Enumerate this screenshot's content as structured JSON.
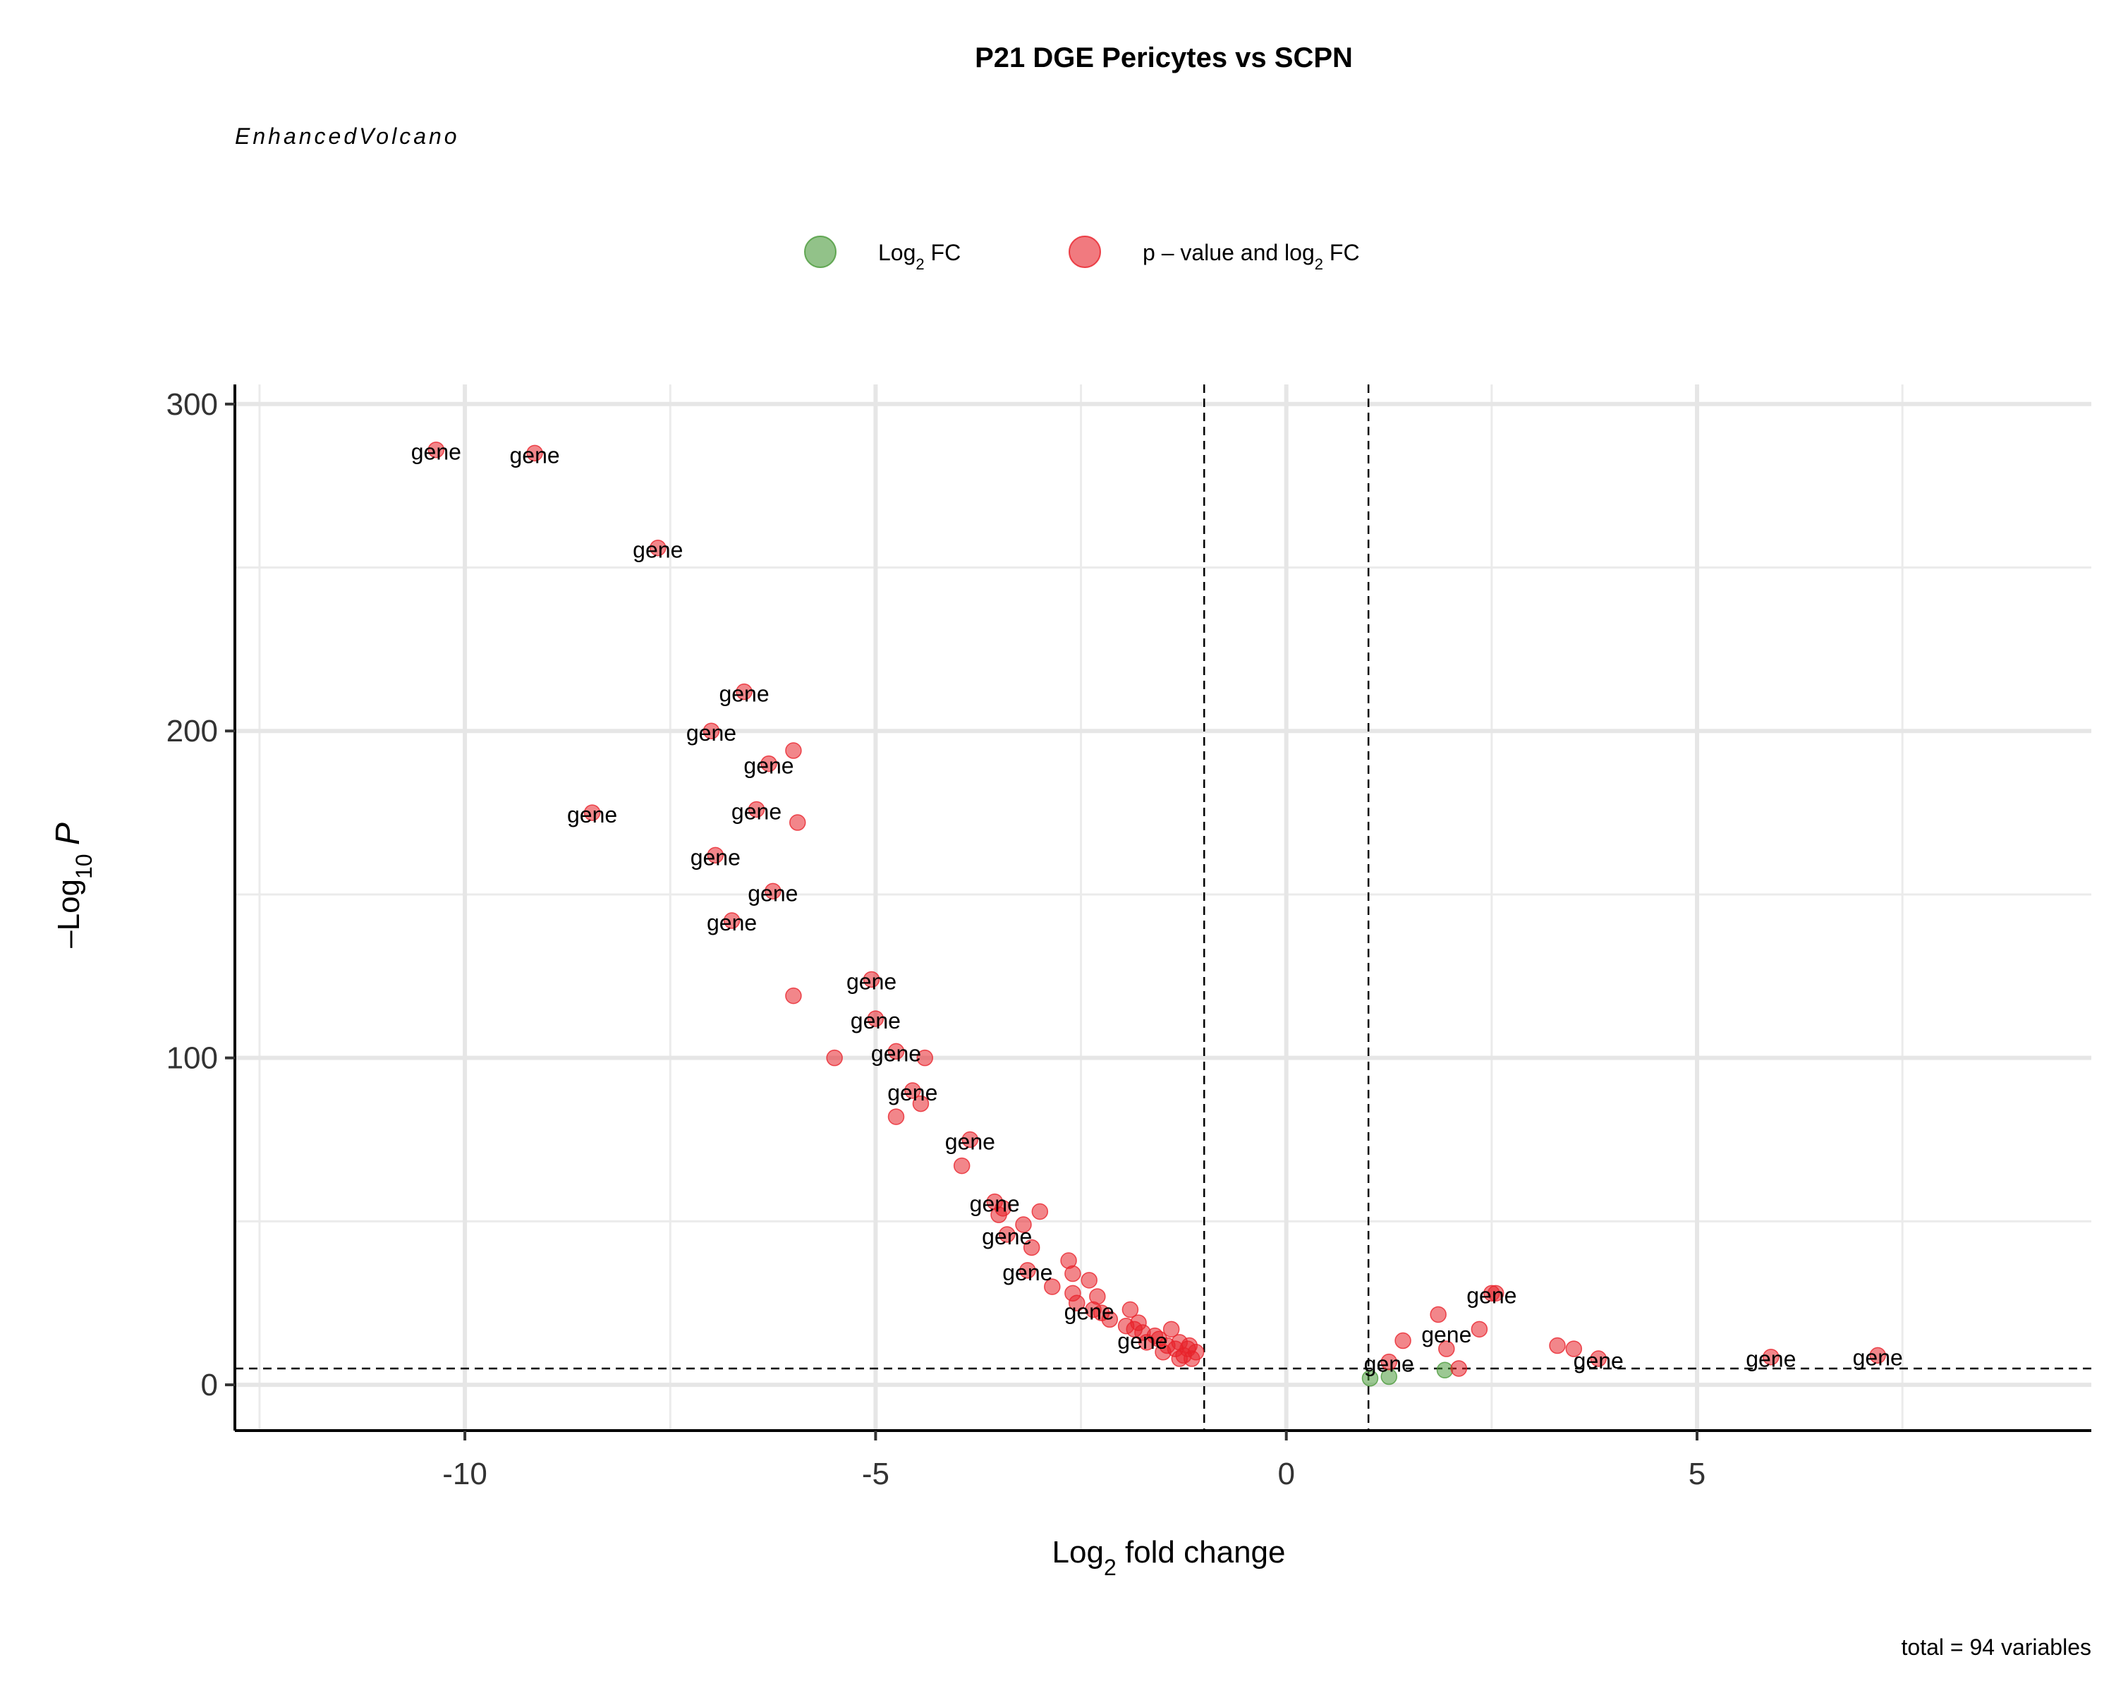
{
  "chart_data": {
    "type": "scatter",
    "title": "P21 DGE Pericytes vs SCPN",
    "subtitle": "EnhancedVolcano",
    "caption": "total = 94 variables",
    "xlabel_parts": [
      "Log",
      "2",
      " fold change"
    ],
    "ylabel_parts": [
      "–Log",
      "10",
      "P"
    ],
    "xlim": [
      -12.8,
      9.8
    ],
    "ylim": [
      -14,
      306
    ],
    "x_ticks": [
      -10,
      -5,
      0,
      5
    ],
    "x_tick_labels": [
      "-10",
      "-5",
      "0",
      "5"
    ],
    "y_ticks": [
      0,
      100,
      200,
      300
    ],
    "y_tick_labels": [
      "0",
      "100",
      "200",
      "300"
    ],
    "grid": true,
    "fc_cutoff": 1,
    "p_cutoff": 5,
    "legend": {
      "position": "top",
      "items": [
        {
          "label_parts": [
            "Log",
            "2",
            " FC"
          ],
          "color": "#4A9A3A"
        },
        {
          "label_parts": [
            "p – value and log",
            "2",
            " FC"
          ],
          "color": "#E8222A"
        }
      ]
    },
    "colors": {
      "log2fc": "#4A9A3A",
      "p_and_log2fc": "#E8222A"
    },
    "label_text": "gene",
    "series": [
      {
        "name": "Log2 FC",
        "color": "#4A9A3A",
        "points": [
          [
            1.02,
            2.0
          ],
          [
            1.25,
            2.5
          ],
          [
            1.93,
            4.5
          ]
        ]
      },
      {
        "name": "p – value and log2 FC",
        "color": "#E8222A",
        "points": [
          [
            -10.35,
            286.0
          ],
          [
            -9.15,
            285.0
          ],
          [
            -7.65,
            256.0
          ],
          [
            -6.6,
            212.0
          ],
          [
            -7.0,
            200.0
          ],
          [
            -6.0,
            194.0
          ],
          [
            -6.3,
            190.0
          ],
          [
            -8.45,
            175.0
          ],
          [
            -6.45,
            176.0
          ],
          [
            -5.95,
            172.0
          ],
          [
            -6.95,
            162.0
          ],
          [
            -6.25,
            151.0
          ],
          [
            -6.75,
            142.0
          ],
          [
            -5.05,
            124.0
          ],
          [
            -6.0,
            119.0
          ],
          [
            -5.0,
            112.0
          ],
          [
            -4.75,
            102.0
          ],
          [
            -4.4,
            100.0
          ],
          [
            -5.5,
            100.0
          ],
          [
            -4.55,
            90.0
          ],
          [
            -4.45,
            86.0
          ],
          [
            -4.75,
            82.0
          ],
          [
            -3.85,
            75.0
          ],
          [
            -3.95,
            67.0
          ],
          [
            -3.55,
            56.0
          ],
          [
            -3.45,
            54.0
          ],
          [
            -3.5,
            52.0
          ],
          [
            -3.0,
            53.0
          ],
          [
            -3.2,
            49.0
          ],
          [
            -3.4,
            46.0
          ],
          [
            -3.1,
            42.0
          ],
          [
            -2.65,
            38.0
          ],
          [
            -3.15,
            35.0
          ],
          [
            -2.6,
            34.0
          ],
          [
            -2.4,
            32.0
          ],
          [
            -2.85,
            30.0
          ],
          [
            -2.6,
            28.0
          ],
          [
            -2.3,
            27.0
          ],
          [
            -2.55,
            25.0
          ],
          [
            -2.35,
            23.0
          ],
          [
            -1.9,
            23.0
          ],
          [
            -2.25,
            22.0
          ],
          [
            -2.15,
            20.0
          ],
          [
            -1.95,
            18.0
          ],
          [
            -1.8,
            19.0
          ],
          [
            -1.85,
            17.0
          ],
          [
            -1.75,
            16.0
          ],
          [
            -1.4,
            17.0
          ],
          [
            -1.6,
            15.0
          ],
          [
            -1.55,
            14.0
          ],
          [
            -1.7,
            13.0
          ],
          [
            -1.45,
            12.0
          ],
          [
            -1.3,
            13.0
          ],
          [
            -1.35,
            11.0
          ],
          [
            -1.5,
            10.0
          ],
          [
            -1.25,
            9.0
          ],
          [
            -1.2,
            11.0
          ],
          [
            -1.15,
            8.0
          ],
          [
            -1.1,
            10.0
          ],
          [
            -1.3,
            8.0
          ],
          [
            -1.18,
            12.0
          ],
          [
            1.25,
            7.0
          ],
          [
            1.42,
            13.5
          ],
          [
            1.85,
            21.5
          ],
          [
            1.95,
            11.0
          ],
          [
            2.1,
            5.0
          ],
          [
            2.35,
            17.0
          ],
          [
            2.5,
            28.0
          ],
          [
            2.55,
            28.0
          ],
          [
            3.3,
            12.0
          ],
          [
            3.5,
            11.0
          ],
          [
            3.8,
            8.0
          ],
          [
            5.9,
            8.5
          ],
          [
            7.2,
            9.0
          ]
        ]
      }
    ],
    "labels": [
      {
        "x": -10.35,
        "y": 286.0
      },
      {
        "x": -9.15,
        "y": 285.0
      },
      {
        "x": -7.65,
        "y": 256.0
      },
      {
        "x": -6.6,
        "y": 212.0
      },
      {
        "x": -7.0,
        "y": 200.0
      },
      {
        "x": -6.3,
        "y": 190.0
      },
      {
        "x": -8.45,
        "y": 175.0
      },
      {
        "x": -6.45,
        "y": 176.0
      },
      {
        "x": -6.95,
        "y": 162.0
      },
      {
        "x": -6.25,
        "y": 151.0
      },
      {
        "x": -6.75,
        "y": 142.0
      },
      {
        "x": -5.05,
        "y": 124.0
      },
      {
        "x": -5.0,
        "y": 112.0
      },
      {
        "x": -4.75,
        "y": 102.0
      },
      {
        "x": -4.55,
        "y": 90.0
      },
      {
        "x": -3.85,
        "y": 75.0
      },
      {
        "x": -3.55,
        "y": 56.0
      },
      {
        "x": -3.4,
        "y": 46.0
      },
      {
        "x": -3.15,
        "y": 35.0
      },
      {
        "x": -2.4,
        "y": 23.0
      },
      {
        "x": -1.75,
        "y": 14.0
      },
      {
        "x": 1.25,
        "y": 7.0
      },
      {
        "x": 2.5,
        "y": 28.0
      },
      {
        "x": 1.95,
        "y": 16.0
      },
      {
        "x": 3.8,
        "y": 8.0
      },
      {
        "x": 5.9,
        "y": 8.5
      },
      {
        "x": 7.2,
        "y": 9.0
      }
    ]
  }
}
